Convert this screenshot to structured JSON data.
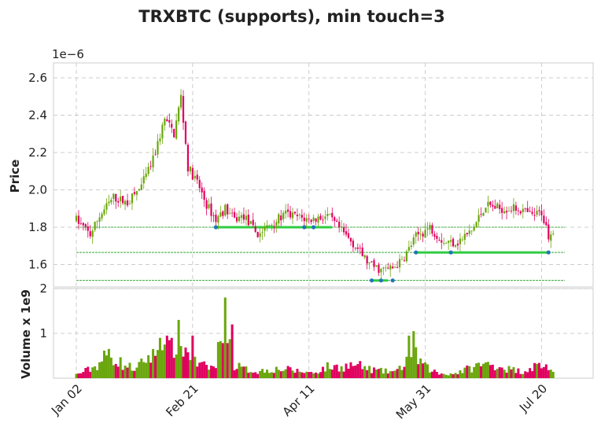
{
  "chart_data": {
    "type": "candlestick",
    "title": "TRXBTC (supports), min touch=3",
    "price_panel": {
      "ylabel": "Price",
      "offset_label": "1e−6",
      "yticks": [
        "1.6",
        "1.8",
        "2.0",
        "2.2",
        "2.4",
        "2.6"
      ],
      "ylim": [
        1.48,
        2.68
      ],
      "grid": true
    },
    "volume_panel": {
      "ylabel": "Volume x 1e9",
      "yticks": [
        "1",
        "2"
      ],
      "ylim": [
        0,
        2.0
      ],
      "grid": true
    },
    "x_ticks": [
      "Jan 02",
      "Feb 21",
      "Apr 11",
      "May 31",
      "Jul 20"
    ],
    "colors": {
      "up": "#6aa60c",
      "down": "#e0005f",
      "support": "#2ecc40",
      "touch": "#1f77b4"
    },
    "support_levels": [
      {
        "price": 1.8,
        "segment_days": [
          60,
          110
        ],
        "touch_days": [
          60,
          98,
          102
        ]
      },
      {
        "price": 1.665,
        "segment_days": [
          146,
          203
        ],
        "touch_days": [
          146,
          161,
          203
        ]
      },
      {
        "price": 1.515,
        "segment_days": [
          127,
          134
        ],
        "touch_days": [
          127,
          131,
          136
        ]
      }
    ],
    "series_days": 210,
    "price_path": [
      [
        0,
        1.84
      ],
      [
        6,
        1.76
      ],
      [
        10,
        1.86
      ],
      [
        16,
        1.96
      ],
      [
        22,
        1.93
      ],
      [
        28,
        2.02
      ],
      [
        33,
        2.16
      ],
      [
        38,
        2.38
      ],
      [
        42,
        2.3
      ],
      [
        45,
        2.5
      ],
      [
        48,
        2.12
      ],
      [
        52,
        2.04
      ],
      [
        56,
        1.92
      ],
      [
        60,
        1.84
      ],
      [
        64,
        1.9
      ],
      [
        68,
        1.84
      ],
      [
        72,
        1.86
      ],
      [
        78,
        1.76
      ],
      [
        84,
        1.82
      ],
      [
        90,
        1.87
      ],
      [
        100,
        1.84
      ],
      [
        108,
        1.86
      ],
      [
        114,
        1.78
      ],
      [
        120,
        1.7
      ],
      [
        126,
        1.6
      ],
      [
        131,
        1.57
      ],
      [
        136,
        1.58
      ],
      [
        140,
        1.62
      ],
      [
        146,
        1.75
      ],
      [
        152,
        1.8
      ],
      [
        158,
        1.72
      ],
      [
        164,
        1.72
      ],
      [
        170,
        1.78
      ],
      [
        176,
        1.92
      ],
      [
        182,
        1.9
      ],
      [
        190,
        1.9
      ],
      [
        196,
        1.86
      ],
      [
        200,
        1.88
      ],
      [
        203,
        1.76
      ],
      [
        205,
        1.79
      ]
    ],
    "volume_path": [
      [
        0,
        0.08
      ],
      [
        8,
        0.25
      ],
      [
        14,
        0.55
      ],
      [
        20,
        0.3
      ],
      [
        26,
        0.2
      ],
      [
        30,
        0.45
      ],
      [
        34,
        0.5
      ],
      [
        36,
        1.25
      ],
      [
        40,
        0.6
      ],
      [
        44,
        0.85
      ],
      [
        48,
        0.55
      ],
      [
        52,
        0.3
      ],
      [
        56,
        0.25
      ],
      [
        60,
        0.25
      ],
      [
        64,
        1.75
      ],
      [
        68,
        0.3
      ],
      [
        72,
        0.2
      ],
      [
        78,
        0.15
      ],
      [
        84,
        0.2
      ],
      [
        90,
        0.2
      ],
      [
        96,
        0.15
      ],
      [
        102,
        0.12
      ],
      [
        108,
        0.25
      ],
      [
        114,
        0.25
      ],
      [
        120,
        0.3
      ],
      [
        126,
        0.2
      ],
      [
        132,
        0.15
      ],
      [
        138,
        0.15
      ],
      [
        142,
        0.4
      ],
      [
        146,
        0.5
      ],
      [
        150,
        0.25
      ],
      [
        156,
        0.1
      ],
      [
        162,
        0.1
      ],
      [
        168,
        0.2
      ],
      [
        174,
        0.3
      ],
      [
        180,
        0.3
      ],
      [
        186,
        0.2
      ],
      [
        192,
        0.15
      ],
      [
        196,
        0.25
      ],
      [
        200,
        0.3
      ],
      [
        203,
        0.25
      ],
      [
        205,
        0.1
      ]
    ],
    "volume_spikes": [
      [
        44,
        1.3
      ],
      [
        64,
        1.8
      ],
      [
        36,
        0.9
      ],
      [
        67,
        1.2
      ],
      [
        145,
        1.05
      ],
      [
        143,
        0.95
      ],
      [
        50,
        0.95
      ]
    ]
  }
}
